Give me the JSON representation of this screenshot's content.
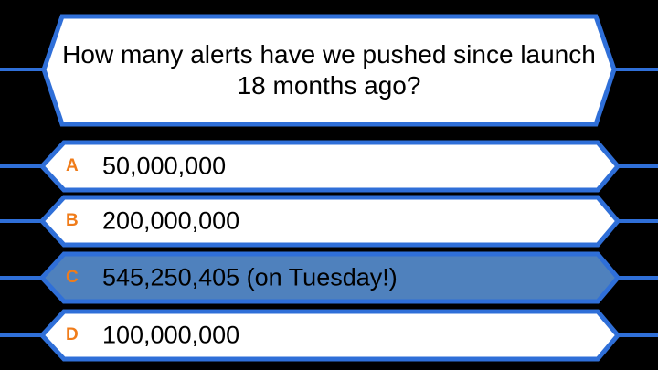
{
  "question": {
    "text": "How many alerts have we pushed since launch 18 months ago?"
  },
  "answers": [
    {
      "letter": "A",
      "text": "50,000,000",
      "selected": false
    },
    {
      "letter": "B",
      "text": "200,000,000",
      "selected": false
    },
    {
      "letter": "C",
      "text": "545,250,405 (on Tuesday!)",
      "selected": true
    },
    {
      "letter": "D",
      "text": "100,000,000",
      "selected": false
    }
  ],
  "colors": {
    "background": "#000000",
    "border": "#2f6fd8",
    "panel_fill": "#ffffff",
    "selected_fill": "#4f81bd",
    "letter": "#f07c1a",
    "text": "#000000"
  }
}
